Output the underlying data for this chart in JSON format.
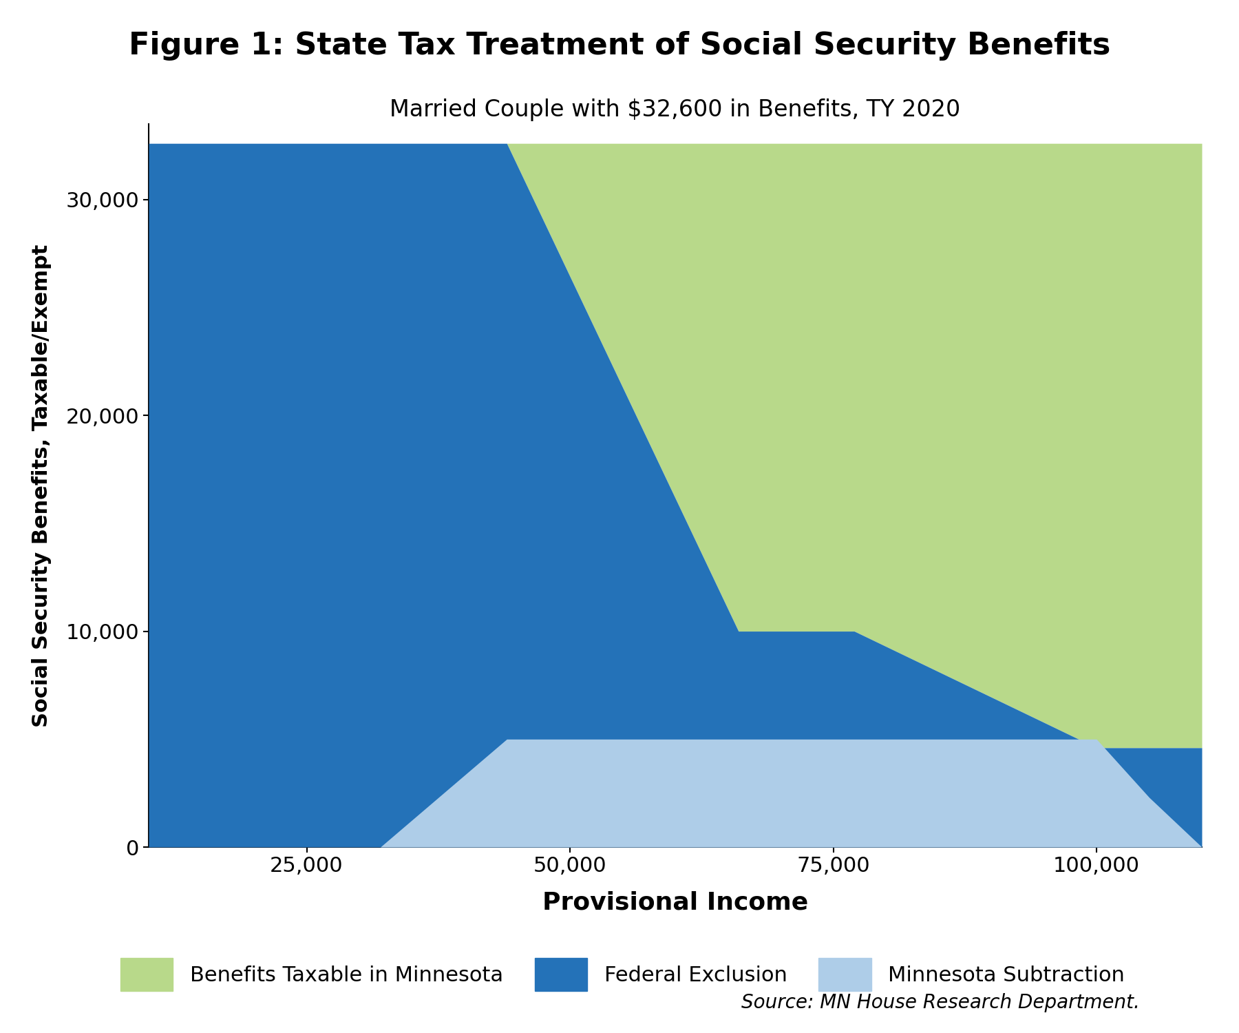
{
  "title": "Figure 1: State Tax Treatment of Social Security Benefits",
  "subtitle": "Married Couple with $32,600 in Benefits, TY 2020",
  "xlabel": "Provisional Income",
  "ylabel": "Social Security Benefits, Taxable/Exempt",
  "source": "Source: MN House Research Department.",
  "xlim": [
    10000,
    110000
  ],
  "ylim": [
    0,
    33500
  ],
  "colors": {
    "federal_exclusion": "#2472b8",
    "mn_subtraction": "#aecde8",
    "mn_taxable": "#b8d98a"
  },
  "x_ticks": [
    25000,
    50000,
    75000,
    100000
  ],
  "x_tick_labels": [
    "25,000",
    "50,000",
    "75,000",
    "100,000"
  ],
  "y_ticks": [
    0,
    10000,
    20000,
    30000
  ],
  "y_tick_labels": [
    "0",
    "10,000",
    "20,000",
    "30,000"
  ],
  "provisional_income": [
    10000,
    32000,
    44000,
    66000,
    77000,
    100000,
    105000,
    110000
  ],
  "federal_exclusion": [
    32600,
    32600,
    32600,
    10000,
    10000,
    4600,
    4600,
    4600
  ],
  "mn_subtraction": [
    0,
    0,
    5000,
    5000,
    5000,
    5000,
    2300,
    0
  ],
  "mn_taxable": [
    0,
    0,
    0,
    22600,
    22600,
    28000,
    28000,
    28000
  ]
}
